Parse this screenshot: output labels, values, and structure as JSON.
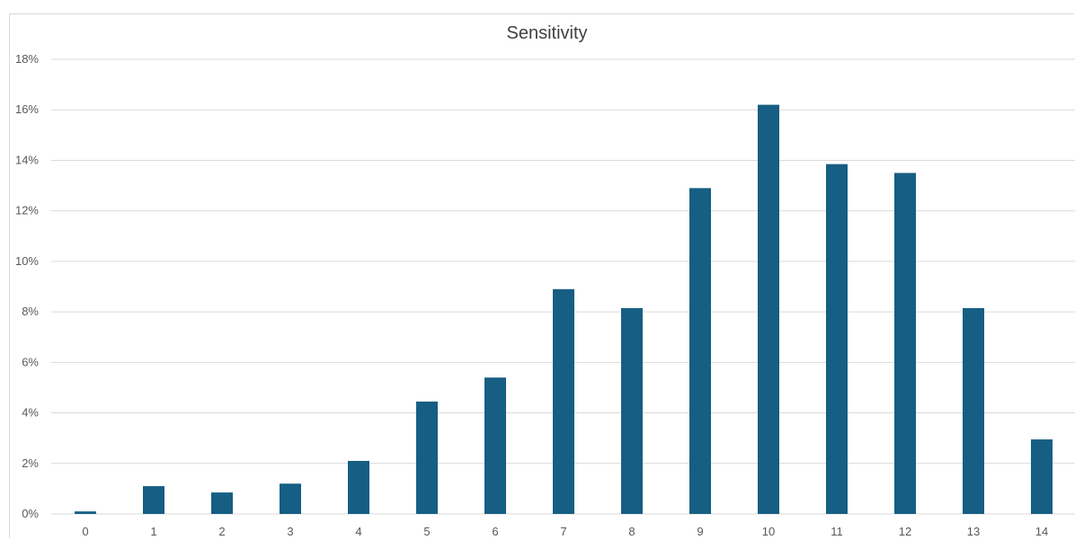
{
  "chart_data": {
    "type": "bar",
    "title": "Sensitivity",
    "xlabel": "",
    "ylabel": "",
    "categories": [
      "0",
      "1",
      "2",
      "3",
      "4",
      "5",
      "6",
      "7",
      "8",
      "9",
      "10",
      "11",
      "12",
      "13",
      "14"
    ],
    "values": [
      0.1,
      1.1,
      0.85,
      1.2,
      2.1,
      4.45,
      5.4,
      8.9,
      8.15,
      12.9,
      16.2,
      13.85,
      13.5,
      8.15,
      2.95
    ],
    "ylim": [
      0,
      18
    ],
    "y_ticks": [
      "0%",
      "2%",
      "4%",
      "6%",
      "8%",
      "10%",
      "12%",
      "14%",
      "16%",
      "18%"
    ],
    "y_tick_values": [
      0,
      2,
      4,
      6,
      8,
      10,
      12,
      14,
      16,
      18
    ],
    "grid": true,
    "legend": "none",
    "bar_color": "#165e83",
    "grid_color": "#d9d9d9"
  }
}
